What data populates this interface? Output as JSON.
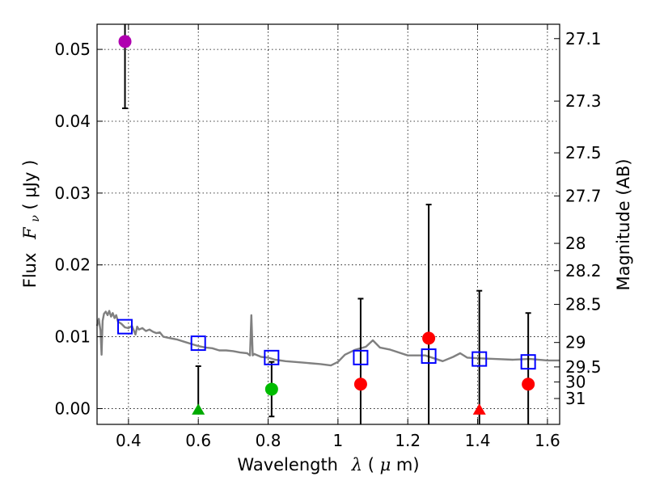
{
  "chart_data": {
    "type": "scatter",
    "xlabel": "Wavelength",
    "xlabel_symbol": "λ",
    "xlabel_unit_open": " (",
    "xlabel_unit_mu": "μ",
    "xlabel_unit_close": "m)",
    "ylabel": "Flux",
    "ylabel_symbol": "F",
    "ylabel_symbol_sub": "ν",
    "ylabel_unit": " ( μJy )",
    "y2label": "Magnitude (AB)",
    "xlim": [
      0.31,
      1.635
    ],
    "ylim": [
      -0.0022,
      0.0535
    ],
    "grid": true,
    "x_ticks": [
      0.4,
      0.6,
      0.8,
      1.0,
      1.2,
      1.4,
      1.6
    ],
    "x_tick_labels": [
      "0.4",
      "0.6",
      "0.8",
      "1",
      "1.2",
      "1.4",
      "1.6"
    ],
    "y_ticks": [
      0.0,
      0.01,
      0.02,
      0.03,
      0.04,
      0.05
    ],
    "y_tick_labels": [
      "0.00",
      "0.01",
      "0.02",
      "0.03",
      "0.04",
      "0.05"
    ],
    "y2_ticks": [
      {
        "label": "27.1",
        "flux": 0.0515
      },
      {
        "label": "27.3",
        "flux": 0.0428
      },
      {
        "label": "27.5",
        "flux": 0.0356
      },
      {
        "label": "27.7",
        "flux": 0.0296
      },
      {
        "label": "28",
        "flux": 0.023
      },
      {
        "label": "28.2",
        "flux": 0.0192
      },
      {
        "label": "28.5",
        "flux": 0.0145
      },
      {
        "label": "29",
        "flux": 0.0092
      },
      {
        "label": "29.5",
        "flux": 0.0058
      },
      {
        "label": "30",
        "flux": 0.0037
      },
      {
        "label": "31",
        "flux": 0.0014
      }
    ],
    "model_spectrum": {
      "name": "best-fit SED",
      "color": "#808080",
      "x": [
        0.31,
        0.315,
        0.32,
        0.323,
        0.326,
        0.33,
        0.335,
        0.34,
        0.345,
        0.35,
        0.355,
        0.36,
        0.365,
        0.37,
        0.38,
        0.39,
        0.4,
        0.41,
        0.42,
        0.425,
        0.43,
        0.44,
        0.45,
        0.46,
        0.47,
        0.48,
        0.49,
        0.5,
        0.52,
        0.54,
        0.56,
        0.58,
        0.6,
        0.62,
        0.64,
        0.66,
        0.68,
        0.7,
        0.72,
        0.74,
        0.748,
        0.752,
        0.756,
        0.76,
        0.78,
        0.8,
        0.82,
        0.85,
        0.9,
        0.95,
        0.98,
        1.0,
        1.02,
        1.05,
        1.08,
        1.1,
        1.12,
        1.15,
        1.2,
        1.25,
        1.3,
        1.33,
        1.35,
        1.37,
        1.4,
        1.45,
        1.5,
        1.55,
        1.6,
        1.635
      ],
      "y": [
        0.0115,
        0.0125,
        0.0108,
        0.0075,
        0.0122,
        0.0132,
        0.0135,
        0.013,
        0.0136,
        0.0128,
        0.0133,
        0.0126,
        0.013,
        0.0121,
        0.0118,
        0.0113,
        0.0112,
        0.0115,
        0.0103,
        0.0114,
        0.011,
        0.0112,
        0.0108,
        0.011,
        0.0107,
        0.0105,
        0.0106,
        0.01,
        0.0098,
        0.0096,
        0.0093,
        0.009,
        0.0087,
        0.0085,
        0.0084,
        0.0081,
        0.0081,
        0.008,
        0.0078,
        0.0077,
        0.0074,
        0.013,
        0.0074,
        0.0076,
        0.0072,
        0.0071,
        0.0068,
        0.0066,
        0.0064,
        0.0062,
        0.006,
        0.0065,
        0.0075,
        0.0082,
        0.0086,
        0.0095,
        0.0085,
        0.0082,
        0.0074,
        0.0074,
        0.0066,
        0.0072,
        0.0077,
        0.0071,
        0.007,
        0.0069,
        0.0068,
        0.0069,
        0.0067,
        0.0067
      ]
    },
    "model_photometry": {
      "name": "model bandpass fluxes",
      "marker": "open-square",
      "color": "#0000ff",
      "points": [
        {
          "x": 0.39,
          "y": 0.0114
        },
        {
          "x": 0.6,
          "y": 0.0091
        },
        {
          "x": 0.81,
          "y": 0.0071
        },
        {
          "x": 1.065,
          "y": 0.0071
        },
        {
          "x": 1.26,
          "y": 0.0073
        },
        {
          "x": 1.405,
          "y": 0.0069
        },
        {
          "x": 1.545,
          "y": 0.0065
        }
      ]
    },
    "observed": [
      {
        "x": 0.39,
        "y": 0.0511,
        "err_low": 0.0418,
        "err_high": 0.0535,
        "marker": "circle",
        "color": "#b000b0"
      },
      {
        "x": 0.6,
        "y": -0.0002,
        "err_low": -0.0002,
        "err_high": 0.0059,
        "marker": "triangle",
        "color": "#00aa00"
      },
      {
        "x": 0.81,
        "y": 0.0027,
        "err_low": -0.0011,
        "err_high": 0.0065,
        "marker": "circle",
        "color": "#00bb00"
      },
      {
        "x": 1.065,
        "y": 0.0034,
        "err_low": -0.0022,
        "err_high": 0.0153,
        "marker": "circle",
        "color": "#ff0000"
      },
      {
        "x": 1.26,
        "y": 0.0098,
        "err_low": -0.0022,
        "err_high": 0.0284,
        "marker": "circle",
        "color": "#ff0000"
      },
      {
        "x": 1.405,
        "y": -0.0002,
        "err_low": -0.0022,
        "err_high": 0.0164,
        "marker": "triangle",
        "color": "#ff0000"
      },
      {
        "x": 1.545,
        "y": 0.0034,
        "err_low": -0.0022,
        "err_high": 0.0133,
        "marker": "circle",
        "color": "#ff0000"
      }
    ]
  }
}
